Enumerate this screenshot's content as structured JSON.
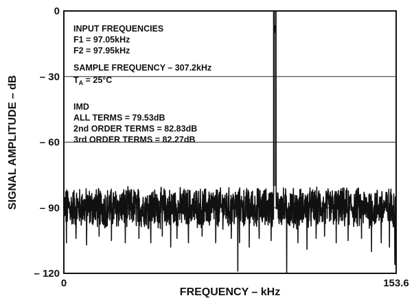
{
  "chart_data": {
    "type": "line",
    "xlabel": "FREQUENCY – kHz",
    "ylabel": "SIGNAL AMPLITUDE – dB",
    "xlim": [
      0,
      153.6
    ],
    "ylim": [
      -120,
      0
    ],
    "x_ticks": [
      {
        "value": 0,
        "label": "0"
      },
      {
        "value": 153.6,
        "label": "153.6"
      }
    ],
    "y_ticks": [
      {
        "value": 0,
        "label": "0"
      },
      {
        "value": -30,
        "label": "– 30"
      },
      {
        "value": -60,
        "label": "– 60"
      },
      {
        "value": -90,
        "label": "– 90"
      },
      {
        "value": -120,
        "label": "– 120"
      }
    ],
    "grid": "horizontal",
    "annotations": {
      "input_header": "INPUT FREQUENCIES",
      "f1": "F1 = 97.05kHz",
      "f2": "F2 = 97.95kHz",
      "sample_freq": "SAMPLE FREQUENCY – 307.2kHz",
      "temp_prefix": "T",
      "temp_sub": "A",
      "temp_suffix": " = 25°C",
      "imd_header": "IMD",
      "all_terms": "ALL TERMS  = 79.53dB",
      "second_order": "2nd ORDER TERMS = 82.83dB",
      "third_order": "3rd ORDER TERMS = 82.27dB"
    },
    "series": [
      {
        "name": "",
        "noise_floor_db": -90,
        "noise_spread_db": 8,
        "peaks": [
          {
            "x": 97.05,
            "y": 0
          },
          {
            "x": 97.95,
            "y": 0
          }
        ],
        "spurs": [
          {
            "x": 1.2,
            "y": -106
          },
          {
            "x": 5.6,
            "y": -104
          },
          {
            "x": 10.5,
            "y": -107
          },
          {
            "x": 16.3,
            "y": -103
          },
          {
            "x": 22.0,
            "y": -105
          },
          {
            "x": 28.4,
            "y": -106
          },
          {
            "x": 34.7,
            "y": -104
          },
          {
            "x": 40.2,
            "y": -106
          },
          {
            "x": 45.5,
            "y": -103
          },
          {
            "x": 49.4,
            "y": -108
          },
          {
            "x": 52.3,
            "y": -104
          },
          {
            "x": 57.6,
            "y": -106
          },
          {
            "x": 63.9,
            "y": -103
          },
          {
            "x": 70.2,
            "y": -106
          },
          {
            "x": 77.4,
            "y": -104
          },
          {
            "x": 80.4,
            "y": -119
          },
          {
            "x": 81.2,
            "y": -106
          },
          {
            "x": 85.7,
            "y": -108
          },
          {
            "x": 90.3,
            "y": -104
          },
          {
            "x": 95.8,
            "y": -105
          },
          {
            "x": 103.0,
            "y": -120
          },
          {
            "x": 108.2,
            "y": -106
          },
          {
            "x": 112.4,
            "y": -109
          },
          {
            "x": 116.6,
            "y": -104
          },
          {
            "x": 120.5,
            "y": -103
          },
          {
            "x": 125.9,
            "y": -106
          },
          {
            "x": 131.4,
            "y": -105
          },
          {
            "x": 137.6,
            "y": -104
          },
          {
            "x": 142.2,
            "y": -110
          },
          {
            "x": 146.7,
            "y": -106
          },
          {
            "x": 150.5,
            "y": -108
          },
          {
            "x": 153.0,
            "y": -116
          }
        ]
      }
    ]
  }
}
